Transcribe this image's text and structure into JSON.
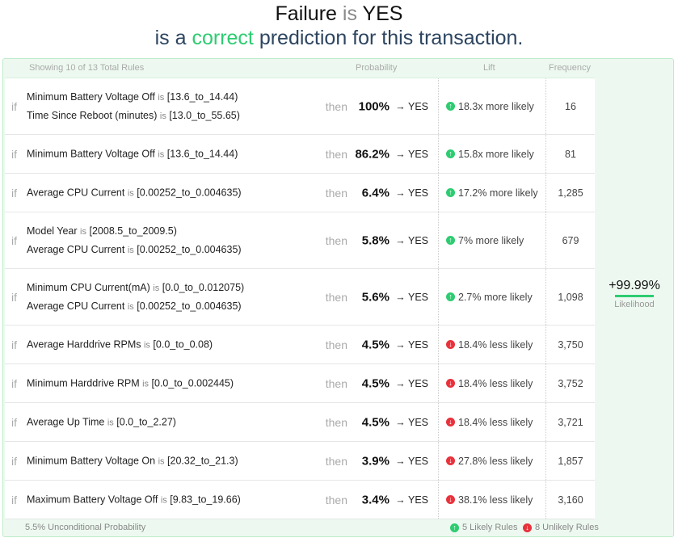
{
  "header": {
    "subject": "Failure",
    "is": "is",
    "value": "YES",
    "sub_pre": "is a",
    "sub_correct": "correct",
    "sub_post": "prediction for this transaction."
  },
  "table": {
    "showing": "Showing 10 of 13 Total Rules",
    "col_probability": "Probability",
    "col_lift": "Lift",
    "col_frequency": "Frequency",
    "if": "if",
    "then": "then",
    "is": "is",
    "rows": [
      {
        "conds": [
          {
            "f": "Minimum Battery Voltage Off",
            "v": "[13.6_to_14.44)"
          },
          {
            "f": "Time Since Reboot (minutes)",
            "v": "[13.0_to_55.65)"
          }
        ],
        "prob": "100%",
        "result": "→ YES",
        "dir": "up",
        "lift": "18.3x more likely",
        "freq": "16"
      },
      {
        "conds": [
          {
            "f": "Minimum Battery Voltage Off",
            "v": "[13.6_to_14.44)"
          }
        ],
        "prob": "86.2%",
        "result": "→ YES",
        "dir": "up",
        "lift": "15.8x more likely",
        "freq": "81"
      },
      {
        "conds": [
          {
            "f": "Average CPU Current",
            "v": "[0.00252_to_0.004635)"
          }
        ],
        "prob": "6.4%",
        "result": "→ YES",
        "dir": "up",
        "lift": "17.2% more likely",
        "freq": "1,285"
      },
      {
        "conds": [
          {
            "f": "Model Year",
            "v": "[2008.5_to_2009.5)"
          },
          {
            "f": "Average CPU Current",
            "v": "[0.00252_to_0.004635)"
          }
        ],
        "prob": "5.8%",
        "result": "→ YES",
        "dir": "up",
        "lift": "7% more likely",
        "freq": "679"
      },
      {
        "conds": [
          {
            "f": "Minimum CPU Current(mA)",
            "v": "[0.0_to_0.012075)"
          },
          {
            "f": "Average CPU Current",
            "v": "[0.00252_to_0.004635)"
          }
        ],
        "prob": "5.6%",
        "result": "→ YES",
        "dir": "up",
        "lift": "2.7% more likely",
        "freq": "1,098"
      },
      {
        "conds": [
          {
            "f": "Average Harddrive RPMs",
            "v": "[0.0_to_0.08)"
          }
        ],
        "prob": "4.5%",
        "result": "→ YES",
        "dir": "down",
        "lift": "18.4% less likely",
        "freq": "3,750"
      },
      {
        "conds": [
          {
            "f": "Minimum Harddrive RPM",
            "v": "[0.0_to_0.002445)"
          }
        ],
        "prob": "4.5%",
        "result": "→ YES",
        "dir": "down",
        "lift": "18.4% less likely",
        "freq": "3,752"
      },
      {
        "conds": [
          {
            "f": "Average Up Time",
            "v": "[0.0_to_2.27)"
          }
        ],
        "prob": "4.5%",
        "result": "→ YES",
        "dir": "down",
        "lift": "18.4% less likely",
        "freq": "3,721"
      },
      {
        "conds": [
          {
            "f": "Minimum Battery Voltage On",
            "v": "[20.32_to_21.3)"
          }
        ],
        "prob": "3.9%",
        "result": "→ YES",
        "dir": "down",
        "lift": "27.8% less likely",
        "freq": "1,857"
      },
      {
        "conds": [
          {
            "f": "Maximum Battery Voltage Off",
            "v": "[9.83_to_19.66)"
          }
        ],
        "prob": "3.4%",
        "result": "→ YES",
        "dir": "down",
        "lift": "38.1% less likely",
        "freq": "3,160"
      }
    ]
  },
  "likelihood": {
    "value": "+99.99%",
    "label": "Likelihood",
    "fill": 0.9999
  },
  "footer": {
    "unconditional": "5.5% Unconditional Probability",
    "likely": "5 Likely Rules",
    "unlikely": "8 Unlikely Rules"
  },
  "colors": {
    "positive": "#2ecc71",
    "negative": "#e8323c",
    "panel": "#edf9f0"
  }
}
